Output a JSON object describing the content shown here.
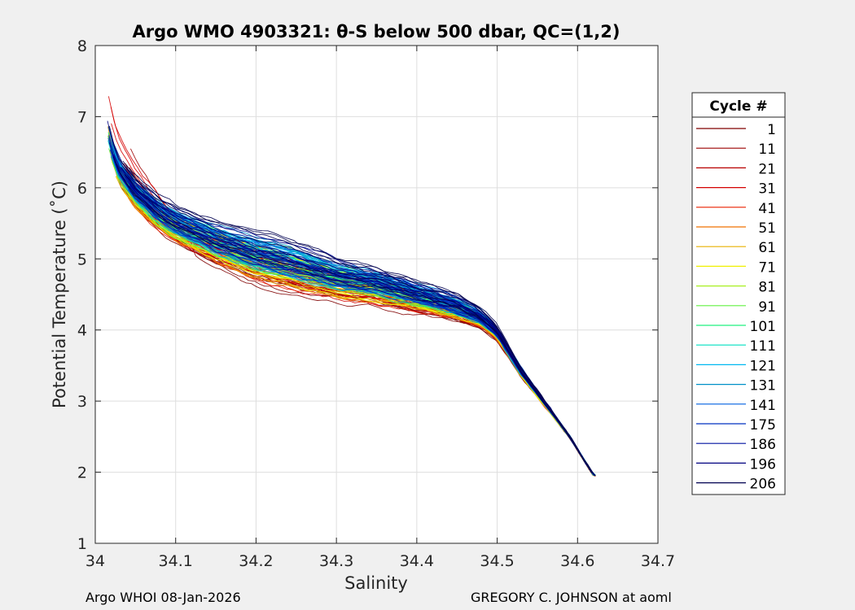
{
  "chart_data": {
    "type": "line",
    "title": "Argo WMO 4903321: θ-S below 500 dbar,  QC=(1,2)",
    "xlabel": "Salinity",
    "ylabel": "Potential Temperature (˚C)",
    "xlim": [
      34.0,
      34.7
    ],
    "ylim": [
      1,
      8
    ],
    "xticks": [
      34,
      34.1,
      34.2,
      34.3,
      34.4,
      34.5,
      34.6,
      34.7
    ],
    "xtick_labels": [
      "34",
      "34.1",
      "34.2",
      "34.3",
      "34.4",
      "34.5",
      "34.6",
      "34.7"
    ],
    "yticks": [
      1,
      2,
      3,
      4,
      5,
      6,
      7,
      8
    ],
    "ytick_labels": [
      "1",
      "2",
      "3",
      "4",
      "5",
      "6",
      "7",
      "8"
    ],
    "grid": true,
    "legend": {
      "title": "Cycle #",
      "placement": "right",
      "entries": [
        {
          "label": "1",
          "color": "#800000"
        },
        {
          "label": "11",
          "color": "#9c0000"
        },
        {
          "label": "21",
          "color": "#b80000"
        },
        {
          "label": "31",
          "color": "#d40000"
        },
        {
          "label": "41",
          "color": "#ea2000"
        },
        {
          "label": "51",
          "color": "#f07000"
        },
        {
          "label": "61",
          "color": "#e8b000"
        },
        {
          "label": "71",
          "color": "#f0f000"
        },
        {
          "label": "81",
          "color": "#a8f020"
        },
        {
          "label": "91",
          "color": "#60f040"
        },
        {
          "label": "101",
          "color": "#20f080"
        },
        {
          "label": "111",
          "color": "#00e0c0"
        },
        {
          "label": "121",
          "color": "#00b8f0"
        },
        {
          "label": "131",
          "color": "#0090c8"
        },
        {
          "label": "141",
          "color": "#0060e0"
        },
        {
          "label": "175",
          "color": "#0030c0"
        },
        {
          "label": "186",
          "color": "#0010a0"
        },
        {
          "label": "196",
          "color": "#000080"
        },
        {
          "label": "206",
          "color": "#000050"
        }
      ]
    },
    "series_trend": {
      "x": [
        34.015,
        34.02,
        34.03,
        34.05,
        34.08,
        34.1,
        34.15,
        34.2,
        34.25,
        34.3,
        34.35,
        34.4,
        34.45,
        34.48,
        34.5,
        34.53,
        34.56,
        34.59,
        34.62
      ],
      "y": [
        6.8,
        6.5,
        6.2,
        5.9,
        5.6,
        5.45,
        5.2,
        5.0,
        4.85,
        4.7,
        4.6,
        4.45,
        4.3,
        4.15,
        3.95,
        3.4,
        2.95,
        2.5,
        1.95
      ]
    }
  },
  "footer": {
    "left": "Argo WHOI 08-Jan-2026",
    "right": "GREGORY C. JOHNSON at aoml"
  }
}
